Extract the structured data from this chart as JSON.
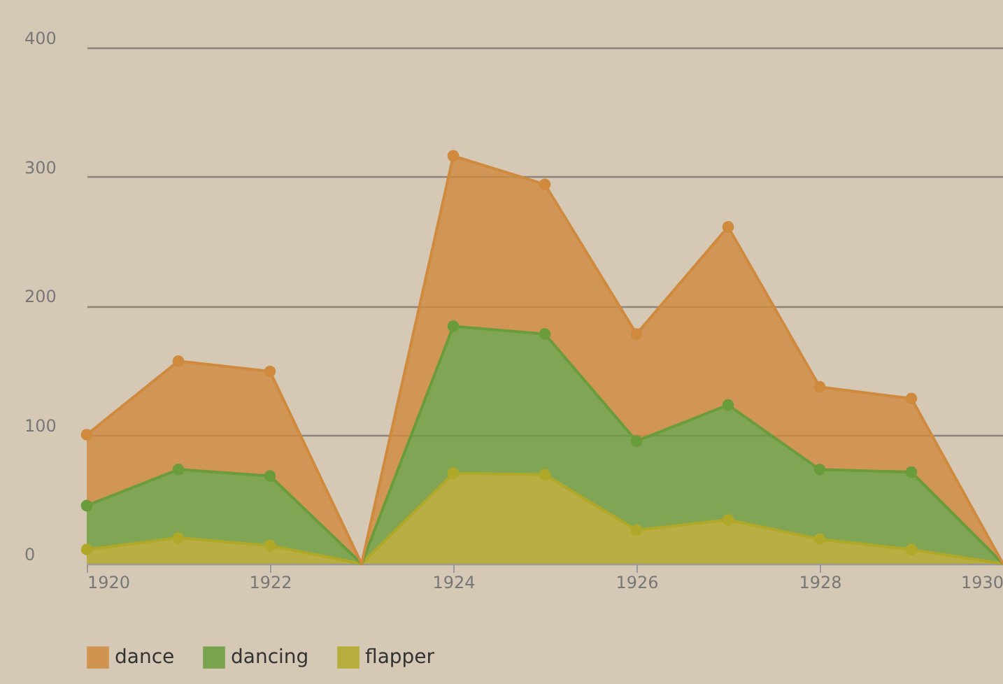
{
  "chart_data": {
    "type": "area",
    "stacked": true,
    "x": [
      1920,
      1921,
      1922,
      1923,
      1924,
      1925,
      1926,
      1927,
      1928,
      1929,
      1930
    ],
    "series": [
      {
        "name": "flapper",
        "color": "#b0a828",
        "values": [
          11,
          20,
          14,
          0,
          70,
          69,
          26,
          34,
          19,
          11,
          0
        ]
      },
      {
        "name": "dancing",
        "color": "#6a9c3c",
        "values": [
          34,
          53,
          54,
          0,
          114,
          109,
          69,
          89,
          54,
          60,
          0
        ]
      },
      {
        "name": "dance",
        "color": "#cf8a3e",
        "values": [
          55,
          84,
          81,
          0,
          132,
          116,
          83,
          138,
          64,
          57,
          0
        ]
      }
    ],
    "xlim": [
      1920,
      1930
    ],
    "xticks": [
      1920,
      1922,
      1924,
      1926,
      1928,
      1930
    ],
    "ylim": [
      0,
      400
    ],
    "yticks": [
      0,
      100,
      200,
      300,
      400
    ],
    "grid": "y",
    "legend": "bottom",
    "marker": "circle",
    "line_style": "solid"
  }
}
